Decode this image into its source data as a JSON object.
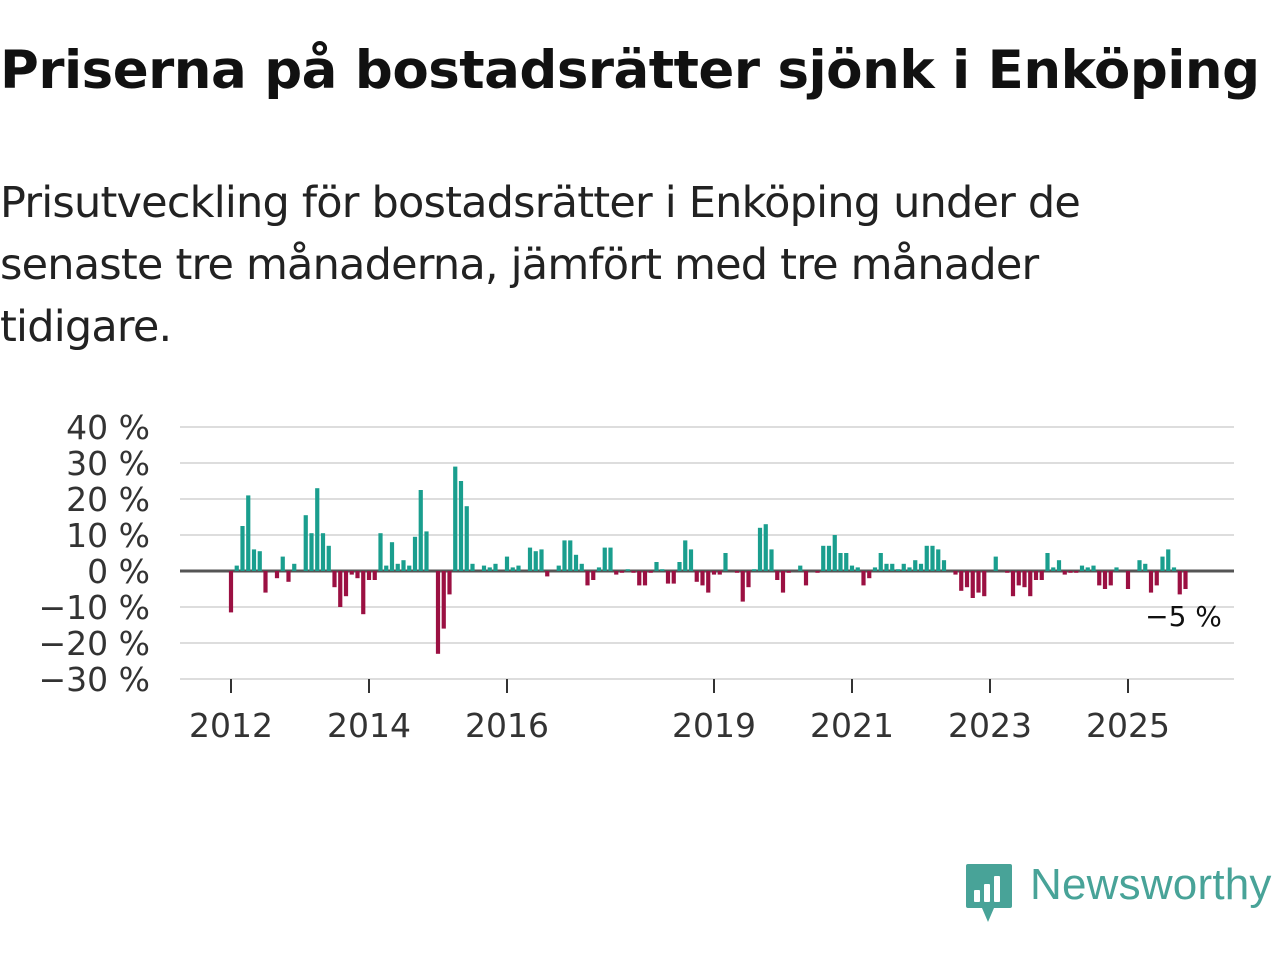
{
  "header": {
    "title": "Priserna på bostadsrätter sjönk i Enköping",
    "subtitle": "Prisutveckling för bostadsrätter i Enköping under de senaste tre månaderna, jämfört med tre månader tidigare."
  },
  "brand": {
    "name": "Newsworthy",
    "color": "#48a398",
    "icon": "newsworthy-bar-chart-icon"
  },
  "colors": {
    "positive": "#1a9e8e",
    "negative": "#9b1042",
    "grid": "#dddddd",
    "baseline": "#555555"
  },
  "chart_data": {
    "type": "bar",
    "title": "Prisutveckling för bostadsrätter i Enköping",
    "xlabel": "",
    "ylabel": "",
    "ylim": [
      -30,
      40
    ],
    "yticks": [
      40,
      30,
      20,
      10,
      0,
      -10,
      -20,
      -30
    ],
    "ytick_labels": [
      "40 %",
      "30 %",
      "20 %",
      "10 %",
      "0 %",
      "−10 %",
      "−20 %",
      "−30 %"
    ],
    "xticks": [
      2012,
      2014,
      2016,
      2019,
      2021,
      2023,
      2025
    ],
    "start": "2012-01",
    "end": "2025-10",
    "last_value_label": "−5 %",
    "values": [
      -11.5,
      1.5,
      12.5,
      21,
      6,
      5.5,
      -6,
      0,
      -2,
      4,
      -3,
      2,
      0,
      15.5,
      10.5,
      23,
      10.5,
      7,
      -4.5,
      -10,
      -7,
      -1,
      -2,
      -12,
      -2.5,
      -2.5,
      10.5,
      1.5,
      8,
      2,
      3,
      1.5,
      9.5,
      22.5,
      11,
      0,
      -23,
      -16,
      -6.5,
      29,
      25,
      18,
      2,
      0,
      1.5,
      1,
      2,
      0,
      4,
      1,
      1.5,
      0,
      6.5,
      5.5,
      6,
      -1.5,
      0,
      1.5,
      8.5,
      8.5,
      4.5,
      2,
      -4,
      -2.5,
      1,
      6.5,
      6.5,
      -1,
      -0.5,
      0.5,
      -0.5,
      -4,
      -4,
      -0.5,
      2.5,
      0.5,
      -3.5,
      -3.5,
      2.5,
      8.5,
      6,
      -3,
      -4,
      -6,
      -1,
      -1,
      5,
      0,
      -0.5,
      -8.5,
      -4.5,
      0.5,
      12,
      13,
      6,
      -2.5,
      -6,
      -0.5,
      0,
      1.5,
      -4,
      0,
      -0.5,
      7,
      7,
      10,
      5,
      5,
      1.5,
      1,
      -4,
      -2,
      1,
      5,
      2,
      2,
      0.5,
      2,
      1,
      3,
      2,
      7,
      7,
      6,
      3,
      0,
      -1,
      -5.5,
      -4.5,
      -7.5,
      -6,
      -7,
      0,
      4,
      0,
      -0.5,
      -7,
      -4,
      -4.5,
      -7,
      -2.5,
      -2.5,
      5,
      1,
      3,
      -1,
      -0.5,
      -0.5,
      1.5,
      1,
      1.5,
      -4,
      -5,
      -4,
      1,
      0,
      -5,
      0,
      3,
      2,
      -6,
      -4,
      4,
      6,
      1,
      -6.5,
      -5
    ]
  }
}
